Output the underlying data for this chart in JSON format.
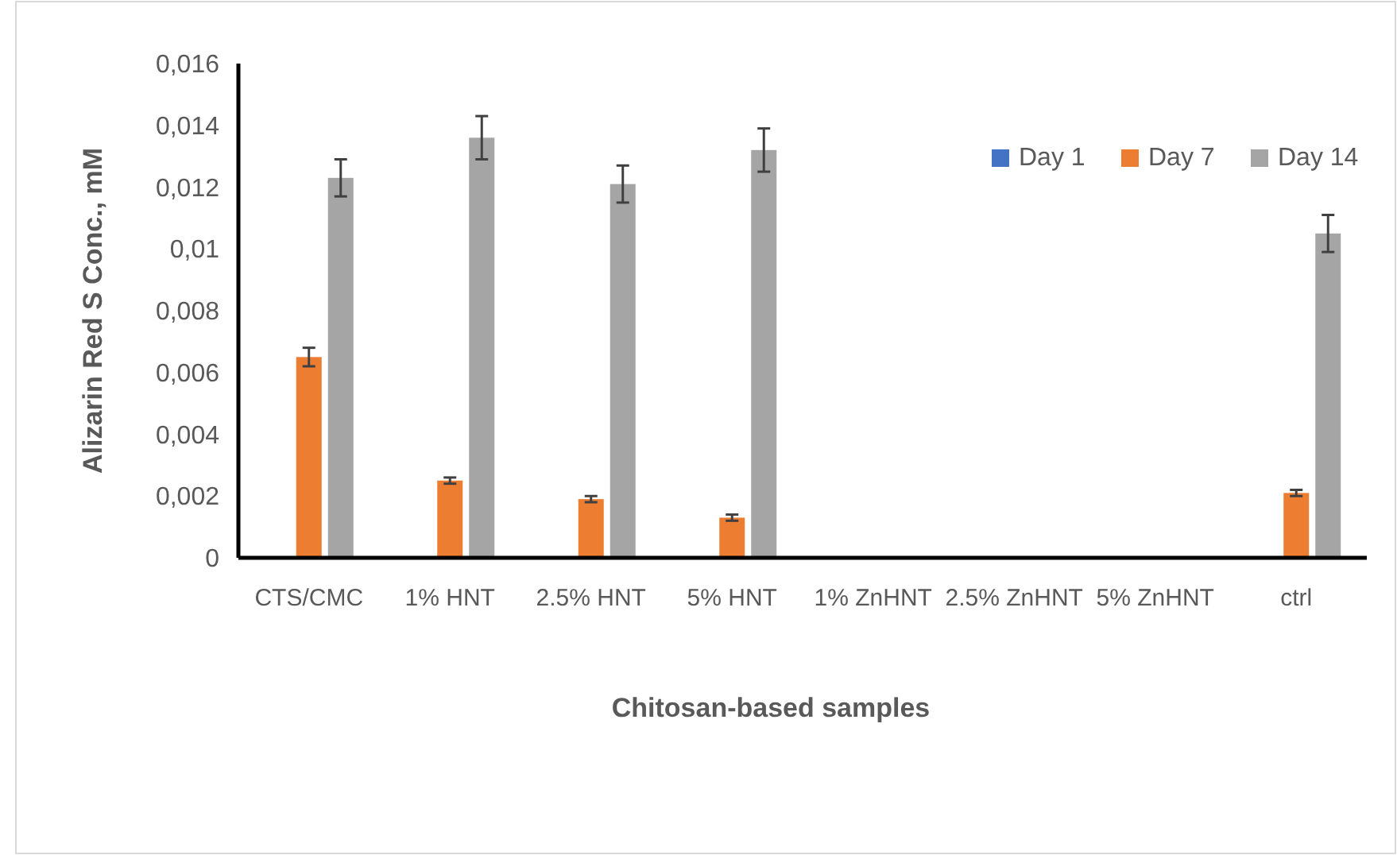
{
  "chart_data": {
    "type": "bar",
    "xlabel": "Chitosan-based samples",
    "ylabel": "Alizarin Red S Conc., mM",
    "categories": [
      "CTS/CMC",
      "1% HNT",
      "2.5% HNT",
      "5% HNT",
      "1% ZnHNT",
      "2.5% ZnHNT",
      "5% ZnHNT",
      "ctrl"
    ],
    "series": [
      {
        "name": "Day 1",
        "color": "#4472c4",
        "values": [
          null,
          null,
          null,
          null,
          null,
          null,
          null,
          null
        ]
      },
      {
        "name": "Day 7",
        "color": "#ed7d31",
        "values": [
          0.0065,
          0.0025,
          0.0019,
          0.0013,
          null,
          null,
          null,
          0.0021
        ],
        "errors": [
          0.0003,
          0.0001,
          0.0001,
          0.0001,
          null,
          null,
          null,
          0.0001
        ]
      },
      {
        "name": "Day 14",
        "color": "#a5a5a5",
        "values": [
          0.0123,
          0.0136,
          0.0121,
          0.0132,
          null,
          null,
          null,
          0.0105
        ],
        "errors": [
          0.0006,
          0.0007,
          0.0006,
          0.0007,
          null,
          null,
          null,
          0.0006
        ]
      }
    ],
    "ylim": [
      0,
      0.016
    ],
    "yticks": [
      0,
      {
        "value": 0.002,
        "label": "0,002"
      },
      {
        "value": 0.004,
        "label": "0,004"
      },
      {
        "value": 0.006,
        "label": "0,006"
      },
      {
        "value": 0.008,
        "label": "0,008"
      },
      {
        "value": 0.01,
        "label": "0,01"
      },
      {
        "value": 0.012,
        "label": "0,012"
      },
      {
        "value": 0.014,
        "label": "0,014"
      },
      {
        "value": 0.016,
        "label": "0,016"
      }
    ],
    "grid": false,
    "legend": "top right"
  }
}
